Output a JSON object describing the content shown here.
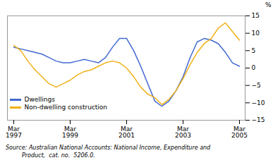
{
  "chart_data": {
    "type": "line",
    "categories": [
      "Mar\n1997",
      null,
      null,
      null,
      null,
      null,
      null,
      null,
      "Mar\n1999",
      null,
      null,
      null,
      null,
      null,
      null,
      null,
      "Mar\n2001",
      null,
      null,
      null,
      null,
      null,
      null,
      null,
      "Mar\n2003",
      null,
      null,
      null,
      null,
      null,
      null,
      null,
      "Mar\n2005"
    ],
    "series": [
      {
        "name": "Dwellings",
        "values": [
          6.0,
          5.5,
          5.0,
          4.5,
          4.0,
          3.0,
          2.0,
          1.5,
          1.5,
          2.0,
          2.5,
          2.0,
          1.5,
          3.0,
          6.0,
          8.5,
          8.5,
          5.0,
          0.5,
          -4.5,
          -9.5,
          -11.0,
          -9.5,
          -6.5,
          -2.5,
          3.0,
          7.5,
          8.5,
          8.0,
          7.0,
          4.5,
          1.5,
          0.5
        ]
      },
      {
        "name": "Non-dwelling construction",
        "values": [
          6.5,
          5.0,
          2.0,
          -0.5,
          -2.5,
          -4.5,
          -5.5,
          -4.5,
          -3.5,
          -2.0,
          -1.0,
          -0.5,
          0.5,
          1.5,
          2.0,
          1.5,
          0.0,
          -2.5,
          -5.5,
          -7.5,
          -8.5,
          -10.5,
          -9.0,
          -6.5,
          -3.0,
          1.0,
          4.5,
          7.0,
          8.5,
          11.5,
          13.0,
          10.5,
          8.0
        ]
      }
    ],
    "y_label": "%",
    "ylim": [
      -15,
      15
    ],
    "yticks": [
      -15,
      -10,
      -5,
      0,
      5,
      10,
      15
    ],
    "grid": false,
    "legend": "lower left",
    "annotations": [
      "Source: Australian National Accounts: National Income, Expenditure and",
      "         Product,  cat. no.  5206.0."
    ]
  }
}
